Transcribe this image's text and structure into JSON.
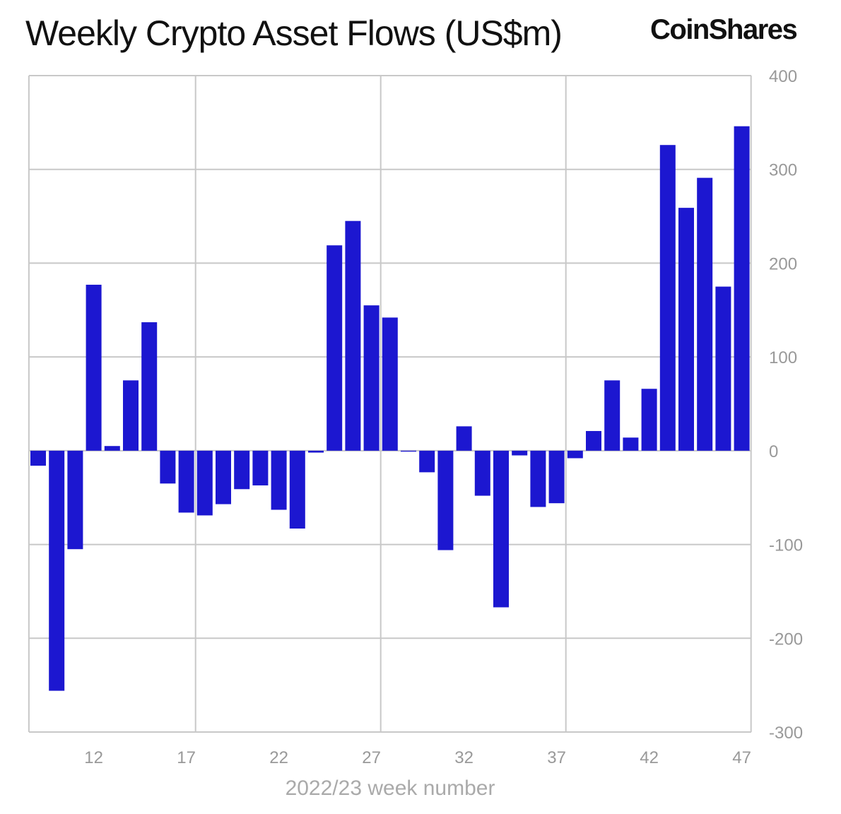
{
  "chart_data": {
    "type": "bar",
    "title": "Weekly Crypto Asset Flows (US$m)",
    "xlabel": "2022/23 week number",
    "ylabel": "",
    "ylim": [
      -300,
      400
    ],
    "y_ticks": [
      400,
      300,
      200,
      100,
      0,
      -100,
      -200,
      -300
    ],
    "x_ticks": [
      12,
      17,
      22,
      27,
      32,
      37,
      42,
      47
    ],
    "grid": true,
    "y_axis_side": "right",
    "bar_color": "#1c17d0",
    "categories": [
      9,
      10,
      11,
      12,
      13,
      14,
      15,
      16,
      17,
      18,
      19,
      20,
      21,
      22,
      23,
      24,
      25,
      26,
      27,
      28,
      29,
      30,
      31,
      32,
      33,
      34,
      35,
      36,
      37,
      38,
      39,
      40,
      41,
      42,
      43,
      44,
      45,
      46,
      47
    ],
    "values": [
      -16,
      -256,
      -105,
      177,
      5,
      75,
      137,
      -35,
      -66,
      -69,
      -57,
      -41,
      -37,
      -63,
      -83,
      -2,
      219,
      245,
      155,
      142,
      -1,
      -23,
      -106,
      26,
      -48,
      -167,
      -5,
      -60,
      -56,
      -8,
      21,
      75,
      14,
      66,
      326,
      259,
      291,
      175,
      346
    ]
  },
  "logo": "CoinShares"
}
